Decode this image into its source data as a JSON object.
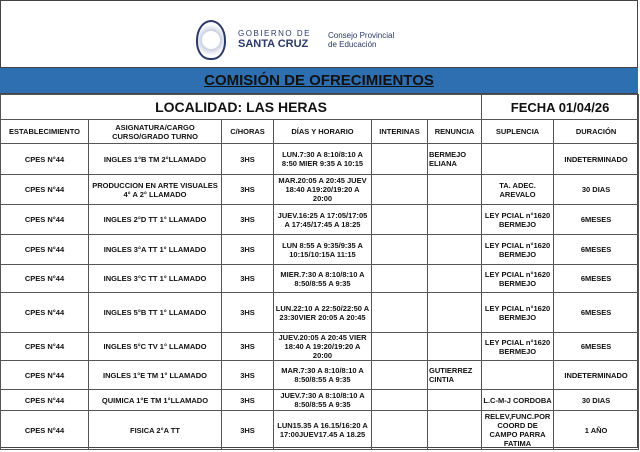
{
  "logo": {
    "line1": "GOBIERNO DE",
    "line2": "SANTA CRUZ",
    "council_line1": "Consejo Provincial",
    "council_line2": "de Educación"
  },
  "title": "COMISIÓN DE OFRECIMIENTOS",
  "localidad": "LOCALIDAD: LAS HERAS",
  "fecha": "FECHA  01/04/26",
  "headers": [
    "ESTABLECIMIENTO",
    "ASIGNATURA/CARGO CURSO/GRADO TURNO",
    "C/HORAS",
    "DÍAS Y HORARIO",
    "INTERINAS",
    "RENUNCIA",
    "SUPLENCIA",
    "DURACIÓN"
  ],
  "rows": [
    {
      "est": "CPES N°44",
      "asig": "INGLES 1°B TM 2°LLAMADO",
      "horas": "3HS",
      "dias": "LUN.7:30 A 8:10/8:10 A 8:50 MIER 9:35 A 10:15",
      "interinas": "",
      "renuncia": "BERMEJO ELIANA",
      "suplencia": "",
      "duracion": "INDETERMINADO"
    },
    {
      "est": "CPES N°44",
      "asig": "PRODUCCION EN ARTE VISUALES 4° A 2° LLAMADO",
      "horas": "3HS",
      "dias": "MAR.20:05 A 20:45 JUEV 18:40 A19:20/19:20 A 20:00",
      "interinas": "",
      "renuncia": "",
      "suplencia": "TA. ADEC. AREVALO",
      "duracion": "30 DIAS"
    },
    {
      "est": "CPES N°44",
      "asig": "INGLES 2°D TT 1° LLAMADO",
      "horas": "3HS",
      "dias": "JUEV.16:25 A 17:05/17:05 A 17:45/17:45 A 18:25",
      "interinas": "",
      "renuncia": "",
      "suplencia": "LEY PCIAL n°1620 BERMEJO",
      "duracion": "6MESES"
    },
    {
      "est": "CPES N°44",
      "asig": "INGLES 3°A TT 1° LLAMADO",
      "horas": "3HS",
      "dias": "LUN 8:55 A 9:35/9:35 A 10:15/10:15A 11:15",
      "interinas": "",
      "renuncia": "",
      "suplencia": "LEY PCIAL n°1620 BERMEJO",
      "duracion": "6MESES"
    },
    {
      "est": "CPES N°44",
      "asig": "INGLES 3°C TT 1° LLAMADO",
      "horas": "3HS",
      "dias": "MIER.7:30 A 8:10/8:10 A 8:50/8:55 A 9:35",
      "interinas": "",
      "renuncia": "",
      "suplencia": "LEY PCIAL n°1620 BERMEJO",
      "duracion": "6MESES"
    },
    {
      "est": "CPES N°44",
      "asig": "INGLES 5°B TT 1° LLAMADO",
      "horas": "3HS",
      "dias": "LUN.22:10 A 22:50/22:50 A 23:30VIER 20:05 A 20:45",
      "interinas": "",
      "renuncia": "",
      "suplencia": "LEY PCIAL n°1620 BERMEJO",
      "duracion": "6MESES"
    },
    {
      "est": "CPES N°44",
      "asig": "INGLES 5°C TV 1° LLAMADO",
      "horas": "3HS",
      "dias": "JUEV.20:05 A 20:45 VIER 18:40 A 19:20/19:20 A 20:00",
      "interinas": "",
      "renuncia": "",
      "suplencia": "LEY PCIAL n°1620 BERMEJO",
      "duracion": "6MESES"
    },
    {
      "est": "CPES N°44",
      "asig": "INGLES 1°E TM 1° LLAMADO",
      "horas": "3HS",
      "dias": "MAR.7:30 A 8:10/8:10 A 8:50/8:55 A 9:35",
      "interinas": "",
      "renuncia": "GUTIERREZ CINTIA",
      "suplencia": "",
      "duracion": "INDETERMINADO"
    },
    {
      "est": "CPES N°44",
      "asig": "QUIMICA 1°E TM 1°LLAMADO",
      "horas": "3HS",
      "dias": "JUEV.7:30 A 8:10/8:10 A 8:50/8:55 A 9:35",
      "interinas": "",
      "renuncia": "",
      "suplencia": "L.C-M-J CORDOBA",
      "duracion": "30 DIAS"
    },
    {
      "est": "CPES N°44",
      "asig": "FISICA 2°A TT",
      "horas": "3HS",
      "dias": "LUN15.35 A 16.15/16:20 A 17:00JUEV17.45 A 18.25",
      "interinas": "",
      "renuncia": "",
      "suplencia": "RELEV,FUNC.POR COORD DE CAMPO PARRA FATIMA",
      "duracion": "1 AÑO"
    }
  ],
  "colors": {
    "banner": "#2e6fb2",
    "logo": "#2b3a6b"
  }
}
